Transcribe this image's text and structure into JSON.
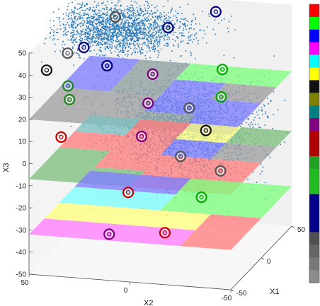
{
  "chart_data": {
    "type": "scatter",
    "title": "",
    "axes": {
      "x1": {
        "label": "X1",
        "range": [
          -50,
          50
        ],
        "ticks": [
          "-50",
          "0",
          "50"
        ]
      },
      "x2": {
        "label": "X2",
        "range": [
          -50,
          50
        ],
        "ticks": [
          "50",
          "0",
          "-50"
        ]
      },
      "x3": {
        "label": "X3",
        "range": [
          -50,
          50
        ],
        "ticks": [
          "50",
          "40",
          "30",
          "20",
          "10",
          "0",
          "-10",
          "-20",
          "-30",
          "-40",
          "-50"
        ]
      }
    },
    "grid": "off",
    "point_color": "#2b7bba",
    "clusters": [
      {
        "center": [
          30,
          30,
          40
        ],
        "spread": [
          15,
          18,
          4
        ],
        "share": 0.4
      },
      {
        "center": [
          0,
          -10,
          12
        ],
        "spread": [
          18,
          18,
          7
        ],
        "share": 0.35
      },
      {
        "center": [
          -10,
          -15,
          0
        ],
        "spread": [
          14,
          16,
          9
        ],
        "share": 0.25
      }
    ],
    "planes": [
      {
        "z": 20,
        "cells": [
          [
            "#a0a0a0",
            "#a0a0a0",
            "#7f7fff",
            "#7f7fff"
          ],
          [
            "#a0a0a0",
            "#a0a0a0",
            "#8fa0a0",
            "#8fa0a0"
          ],
          [
            "#8fa0a0",
            "#7f7fff",
            "#7f7fff",
            "#7fff7f"
          ],
          [
            "#7f7fff",
            "#7f7fff",
            "#a0a0a0",
            "#7fff7f"
          ]
        ]
      },
      {
        "z": -7,
        "cells": [
          [
            "#80c080",
            "#80c080",
            "#ff7f7f",
            "#7fc0c0"
          ],
          [
            "#80c080",
            "#ff7f7f",
            "#ff7f7f",
            "#ff7f7f"
          ],
          [
            "#ff7f7f",
            "#ff7f7f",
            "#7f7fff",
            "#ffff7f"
          ],
          [
            "#ff7f7f",
            "#ff7f7f",
            "#a0a0a0",
            "#80c080"
          ]
        ]
      },
      {
        "z": -32,
        "cells": [
          [
            "#ff7fff",
            "#ffff7f",
            "#7fffff",
            "#7f7fff"
          ],
          [
            "#ff7fff",
            "#ffff7f",
            "#7fffff",
            "#7f7fff"
          ],
          [
            "#ff7fff",
            "#ffff7f",
            "#7fff7f",
            "#7fff7f"
          ],
          [
            "#ff7f7f",
            "#ff7f7f",
            "#7fff7f",
            "#7fff7f"
          ]
        ]
      }
    ],
    "markers": [
      {
        "x1": -13,
        "x2": 34,
        "x3": 43,
        "color": "#000080"
      },
      {
        "x1": 19,
        "x2": 28,
        "x3": 48,
        "color": "#555555"
      },
      {
        "x1": -33,
        "x2": 36,
        "x3": 46,
        "color": "#555555"
      },
      {
        "x1": -31,
        "x2": 47,
        "x3": 37,
        "color": "#111111"
      },
      {
        "x1": 6,
        "x2": -2,
        "x3": 49,
        "color": "#000080"
      },
      {
        "x1": 38,
        "x2": -16,
        "x3": 48,
        "color": "#000080"
      },
      {
        "x1": 19,
        "x2": -25,
        "x3": 28,
        "color": "#00aa00"
      },
      {
        "x1": -8,
        "x2": 24,
        "x3": 34,
        "color": "#000080"
      },
      {
        "x1": -29,
        "x2": 37,
        "x3": 30,
        "color": "#228822"
      },
      {
        "x1": 14,
        "x2": 8,
        "x3": 25,
        "color": "#800080"
      },
      {
        "x1": -10,
        "x2": 42,
        "x3": 18,
        "color": "#228822"
      },
      {
        "x1": 37,
        "x2": -19,
        "x3": 10,
        "color": "#00aa00"
      },
      {
        "x1": 13,
        "x2": 10,
        "x3": 12,
        "color": "#800080"
      },
      {
        "x1": 1,
        "x2": -14,
        "x3": 15,
        "color": "#555555"
      },
      {
        "x1": -27,
        "x2": 41,
        "x3": 6,
        "color": "#cc0000"
      },
      {
        "x1": 9,
        "x2": 12,
        "x3": -2,
        "color": "#800080"
      },
      {
        "x1": 25,
        "x2": -15,
        "x3": -2,
        "color": "#111111"
      },
      {
        "x1": 16,
        "x2": -25,
        "x3": -17,
        "color": "#555555"
      },
      {
        "x1": 10,
        "x2": -7,
        "x3": -10,
        "color": "#555555"
      },
      {
        "x1": -13,
        "x2": 12,
        "x3": -21,
        "color": "#cc0000"
      },
      {
        "x1": -2,
        "x2": -21,
        "x3": -24,
        "color": "#00aa00"
      },
      {
        "x1": -31,
        "x2": 16,
        "x3": -35,
        "color": "#800080"
      },
      {
        "x1": -29,
        "x2": -11,
        "x3": -33,
        "color": "#cc0000"
      }
    ],
    "colorbar": {
      "colors": [
        "#ff0000",
        "#00ff00",
        "#0000ff",
        "#ff00ff",
        "#00ffff",
        "#ffff00",
        "#111111",
        "#808000",
        "#008080",
        "#800080",
        "#b00000",
        "#b00000",
        "#22a022",
        "#22bb22",
        "#22bb22",
        "#00008b",
        "#00008b",
        "#00008b",
        "#505050",
        "#646464",
        "#787878",
        "#8c8c8c"
      ]
    }
  }
}
